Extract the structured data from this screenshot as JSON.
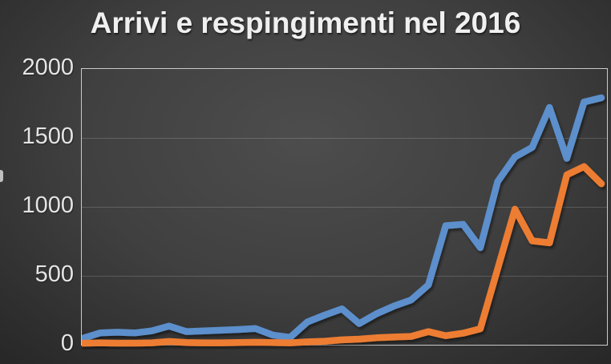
{
  "title": "Arrivi e respingimenti nel 2016",
  "y_axis": {
    "ticks": [
      "2000",
      "1500",
      "1000",
      "500",
      "0"
    ]
  },
  "colors": {
    "background_center": "#4d4d4d",
    "background_edge": "#232323",
    "title_text": "#f0f0f0",
    "tick_text": "#e4e4e4",
    "plot_border": "#c9c9c9",
    "grid_line": "rgba(255,255,255,0.17)",
    "arrivi_blue": "#5b8fcb",
    "respingimenti_orange": "#ed7d31"
  },
  "chart_data": {
    "type": "line",
    "title": "Arrivi e respingimenti nel 2016",
    "x": [
      1,
      2,
      3,
      4,
      5,
      6,
      7,
      8,
      9,
      10,
      11,
      12,
      13,
      14,
      15,
      16,
      17,
      18,
      19,
      20,
      21,
      22,
      23,
      24,
      25,
      26,
      27,
      28,
      29,
      30,
      31
    ],
    "xlabel": "",
    "ylabel": "",
    "ylim": [
      0,
      2000
    ],
    "y_ticks": [
      0,
      500,
      1000,
      1500,
      2000
    ],
    "x_tick_labels_visible": false,
    "legend": "none",
    "grid": "horizontal",
    "series": [
      {
        "name": "Arrivi",
        "color": "#5b8fcb",
        "values": [
          40,
          80,
          85,
          80,
          95,
          130,
          90,
          95,
          100,
          105,
          112,
          65,
          48,
          160,
          210,
          255,
          148,
          220,
          275,
          320,
          430,
          860,
          870,
          700,
          1180,
          1360,
          1430,
          1720,
          1350,
          1760,
          1790
        ]
      },
      {
        "name": "Respingimenti",
        "color": "#ed7d31",
        "values": [
          5,
          8,
          6,
          6,
          8,
          18,
          10,
          8,
          8,
          10,
          12,
          10,
          8,
          15,
          20,
          30,
          35,
          45,
          50,
          55,
          90,
          60,
          78,
          110,
          545,
          980,
          750,
          735,
          1230,
          1290,
          1165
        ]
      }
    ]
  }
}
